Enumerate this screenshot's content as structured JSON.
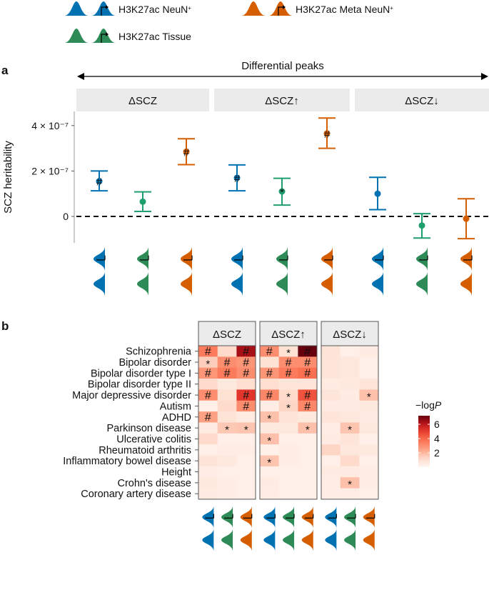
{
  "legend": {
    "items": [
      {
        "label": "H3K27ac NeuN",
        "sup": "+",
        "color": "#0072B2"
      },
      {
        "label": "H3K27ac Meta NeuN",
        "sup": "+",
        "color": "#D55E00"
      },
      {
        "label": "H3K27ac Tissue",
        "sup": "",
        "color": "#2E8B57"
      }
    ]
  },
  "colors": {
    "NeuN": "#0072B2",
    "Tissue": "#1F9E6E",
    "Meta": "#D55E00",
    "strip": "#EBEBEB",
    "heat_low": "#FFF5F0",
    "heat_high": "#67000D"
  },
  "chart_data": [
    {
      "type": "scatter",
      "panel_label": "a",
      "header": "Differential peaks",
      "facets": [
        "ΔSCZ",
        "ΔSCZ↑",
        "ΔSCZ↓"
      ],
      "ylabel": "SCZ heritability",
      "yticks": [
        {
          "value": 0,
          "label": "0"
        },
        {
          "value": 2e-07,
          "label": "2 × 10⁻⁷"
        },
        {
          "value": 4e-07,
          "label": "4 × 10⁻⁷"
        }
      ],
      "ylim": [
        -1.15e-07,
        4.6e-07
      ],
      "reference_line": 0,
      "series": [
        {
          "facet": "ΔSCZ",
          "group": "NeuN",
          "value": 1.55e-07,
          "low": 1.13e-07,
          "high": 2e-07,
          "mark": "#"
        },
        {
          "facet": "ΔSCZ",
          "group": "Tissue",
          "value": 6.5e-08,
          "low": 2.2e-08,
          "high": 1.08e-07,
          "mark": ""
        },
        {
          "facet": "ΔSCZ",
          "group": "Meta",
          "value": 2.85e-07,
          "low": 2.28e-07,
          "high": 3.42e-07,
          "mark": "#"
        },
        {
          "facet": "ΔSCZ↑",
          "group": "NeuN",
          "value": 1.7e-07,
          "low": 1.13e-07,
          "high": 2.27e-07,
          "mark": "#"
        },
        {
          "facet": "ΔSCZ↑",
          "group": "Tissue",
          "value": 1.1e-07,
          "low": 5e-08,
          "high": 1.68e-07,
          "mark": "*"
        },
        {
          "facet": "ΔSCZ↑",
          "group": "Meta",
          "value": 3.65e-07,
          "low": 3e-07,
          "high": 4.33e-07,
          "mark": "#"
        },
        {
          "facet": "ΔSCZ↓",
          "group": "NeuN",
          "value": 1e-07,
          "low": 3e-08,
          "high": 1.72e-07,
          "mark": ""
        },
        {
          "facet": "ΔSCZ↓",
          "group": "Tissue",
          "value": -4e-08,
          "low": -9.5e-08,
          "high": 1.2e-08,
          "mark": ""
        },
        {
          "facet": "ΔSCZ↓",
          "group": "Meta",
          "value": -1e-08,
          "low": -9.8e-08,
          "high": 7.8e-08,
          "mark": ""
        }
      ]
    },
    {
      "type": "heatmap",
      "panel_label": "b",
      "facets": [
        "ΔSCZ",
        "ΔSCZ↑",
        "ΔSCZ↓"
      ],
      "columns": [
        "NeuN",
        "Tissue",
        "Meta"
      ],
      "rows": [
        "Schizophrenia",
        "Bipolar disorder",
        "Bipolar disorder type I",
        "Bipolar disorder type II",
        "Major depressive disorder",
        "Autism",
        "ADHD",
        "Parkinson disease",
        "Ulcerative colitis",
        "Rheumatoid arthritis",
        "Inflammatory bowel disease",
        "Height",
        "Crohn's disease",
        "Coronary artery disease"
      ],
      "values": [
        [
          3.5,
          1.2,
          6.3,
          3.0,
          1.0,
          7.2,
          0.9,
          0.3,
          0.5
        ],
        [
          1.5,
          3.0,
          2.8,
          1.0,
          3.0,
          3.0,
          0.8,
          0.7,
          0.3
        ],
        [
          2.8,
          3.5,
          3.0,
          2.8,
          3.5,
          3.8,
          0.8,
          0.7,
          0.3
        ],
        [
          1.2,
          0.6,
          1.1,
          1.1,
          0.8,
          0.8,
          0.5,
          0.6,
          0.8
        ],
        [
          3.0,
          1.0,
          5.2,
          3.2,
          1.2,
          4.5,
          0.8,
          0.5,
          1.8
        ],
        [
          0.3,
          1.2,
          3.0,
          0.4,
          1.3,
          3.2,
          0.5,
          0.5,
          0.6
        ],
        [
          2.5,
          0.9,
          0.5,
          1.8,
          0.9,
          0.6,
          0.8,
          0.7,
          0.5
        ],
        [
          0.5,
          1.6,
          1.7,
          0.6,
          0.6,
          1.8,
          0.4,
          1.7,
          0.6
        ],
        [
          1.2,
          0.3,
          0.3,
          1.8,
          0.3,
          0.3,
          0.5,
          0.8,
          0.3
        ],
        [
          0.3,
          0.4,
          0.4,
          0.2,
          0.4,
          0.3,
          1.3,
          0.7,
          0.6
        ],
        [
          0.9,
          0.6,
          0.3,
          1.7,
          0.4,
          0.3,
          0.3,
          1.2,
          0.3
        ],
        [
          0.4,
          0.3,
          0.3,
          0.3,
          0.3,
          0.3,
          0.5,
          0.5,
          0.4
        ],
        [
          0.6,
          0.4,
          0.3,
          0.5,
          0.3,
          0.3,
          0.4,
          1.8,
          0.4
        ],
        [
          0.5,
          0.4,
          0.3,
          0.4,
          0.3,
          0.3,
          0.4,
          0.4,
          0.3
        ]
      ],
      "marks": [
        [
          "#",
          "",
          "#",
          "#",
          "*",
          "#",
          "",
          "",
          ""
        ],
        [
          "*",
          "#",
          "#",
          "",
          "#",
          "#",
          "",
          "",
          ""
        ],
        [
          "#",
          "#",
          "#",
          "#",
          "#",
          "#",
          "",
          "",
          ""
        ],
        [
          "",
          "",
          "",
          "",
          "",
          "",
          "",
          "",
          ""
        ],
        [
          "#",
          "",
          "#",
          "#",
          "*",
          "#",
          "",
          "",
          "*"
        ],
        [
          "",
          "",
          "#",
          "",
          "*",
          "#",
          "",
          "",
          ""
        ],
        [
          "#",
          "",
          "",
          "*",
          "",
          "",
          "",
          "",
          ""
        ],
        [
          "",
          "*",
          "*",
          "",
          "",
          "*",
          "",
          "*",
          ""
        ],
        [
          "",
          "",
          "",
          "*",
          "",
          "",
          "",
          "",
          ""
        ],
        [
          "",
          "",
          "",
          "",
          "",
          "",
          "",
          "",
          ""
        ],
        [
          "",
          "",
          "",
          "*",
          "",
          "",
          "",
          "",
          ""
        ],
        [
          "",
          "",
          "",
          "",
          "",
          "",
          "",
          "",
          ""
        ],
        [
          "",
          "",
          "",
          "",
          "",
          "",
          "",
          "*",
          ""
        ],
        [
          "",
          "",
          "",
          "",
          "",
          "",
          "",
          "",
          ""
        ]
      ],
      "colorbar": {
        "title": "−log",
        "title_italic": "P",
        "range": [
          0,
          7.2
        ],
        "ticks": [
          2,
          4,
          6
        ]
      }
    }
  ]
}
